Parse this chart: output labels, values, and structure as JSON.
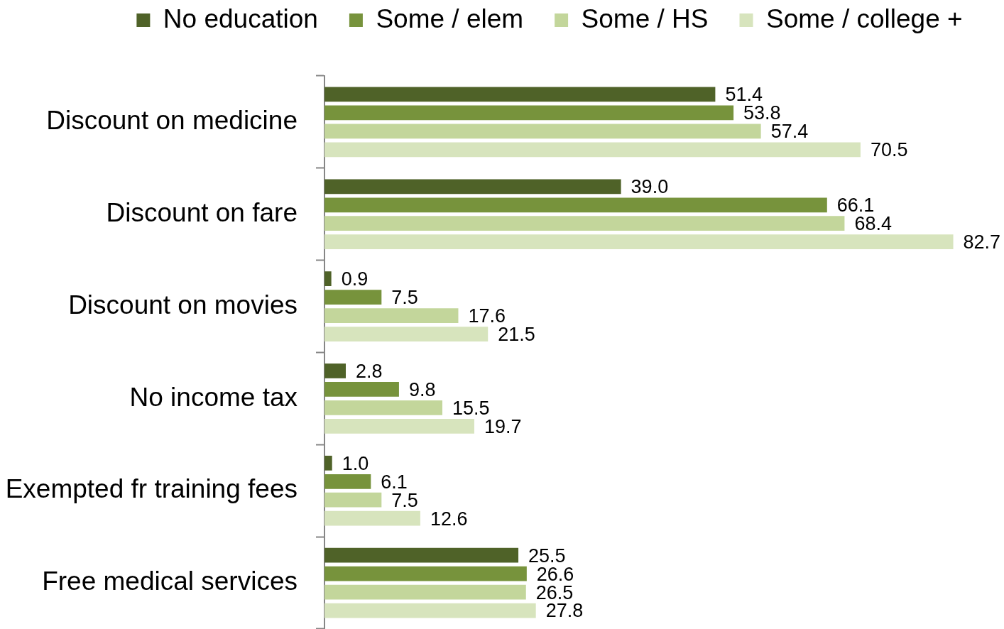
{
  "chart_data": {
    "type": "bar",
    "orientation": "horizontal",
    "categories": [
      "Discount on medicine",
      "Discount on fare",
      "Discount on movies",
      "No income tax",
      "Exempted fr training fees",
      "Free medical services"
    ],
    "series": [
      {
        "name": "No education",
        "color": "#4f6228",
        "values": [
          51.4,
          39.0,
          0.9,
          2.8,
          1.0,
          25.5
        ],
        "value_labels": [
          "51.4",
          "39.0",
          "0.9",
          "2.8",
          "1.0",
          "25.5"
        ]
      },
      {
        "name": "Some / elem",
        "color": "#77933c",
        "values": [
          53.8,
          66.1,
          7.5,
          9.8,
          6.1,
          26.6
        ],
        "value_labels": [
          "53.8",
          "66.1",
          "7.5",
          "9.8",
          "6.1",
          "26.6"
        ]
      },
      {
        "name": "Some / HS",
        "color": "#c3d69b",
        "values": [
          57.4,
          68.4,
          17.6,
          15.5,
          7.5,
          26.5
        ],
        "value_labels": [
          "57.4",
          "68.4",
          "17.6",
          "15.5",
          "7.5",
          "26.5"
        ]
      },
      {
        "name": "Some / college +",
        "color": "#d7e4bd",
        "values": [
          70.5,
          82.7,
          21.5,
          19.7,
          12.6,
          27.8
        ],
        "value_labels": [
          "70.5",
          "82.7",
          "21.5",
          "19.7",
          "12.6",
          "27.8"
        ]
      }
    ],
    "xlim": [
      0,
      89
    ],
    "legend": "top",
    "tick_labels": "y"
  }
}
